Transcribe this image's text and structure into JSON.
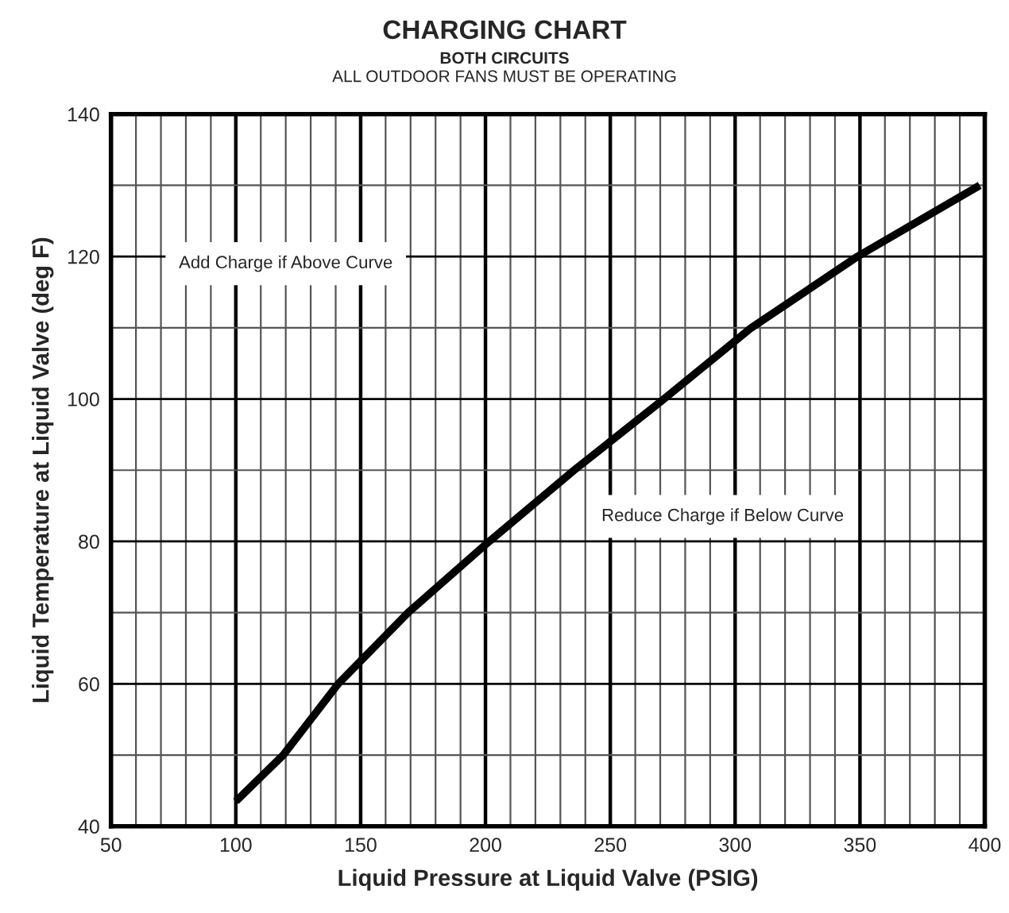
{
  "chart_data": {
    "type": "line",
    "title": "CHARGING CHART",
    "subtitle": "BOTH CIRCUITS\nALL OUTDOOR FANS MUST BE OPERATING",
    "xlabel": "Liquid Pressure at Liquid Valve (PSIG)",
    "ylabel": "Liquid Temperature at Liquid Valve (deg F)",
    "x": [
      100,
      119,
      141,
      169,
      201.5,
      235.5,
      271.5,
      306.5,
      349,
      398
    ],
    "series": [
      {
        "color": "#000000",
        "values": [
          43.5,
          50,
          60,
          70,
          80,
          90,
          100,
          110,
          120,
          130
        ]
      }
    ],
    "xlim": [
      50,
      400
    ],
    "ylim": [
      40,
      140
    ],
    "xticks": [
      50,
      {
        "value": 60,
        "label": null
      },
      {
        "value": 70,
        "label": null
      },
      {
        "value": 80,
        "label": null
      },
      {
        "value": 90,
        "label": null
      },
      100,
      {
        "value": 110,
        "label": null
      },
      {
        "value": 120,
        "label": null
      },
      {
        "value": 130,
        "label": null
      },
      {
        "value": 140,
        "label": null
      },
      150,
      {
        "value": 160,
        "label": null
      },
      {
        "value": 170,
        "label": null
      },
      {
        "value": 180,
        "label": null
      },
      {
        "value": 190,
        "label": null
      },
      200,
      {
        "value": 210,
        "label": null
      },
      {
        "value": 220,
        "label": null
      },
      {
        "value": 230,
        "label": null
      },
      {
        "value": 240,
        "label": null
      },
      250,
      {
        "value": 260,
        "label": null
      },
      {
        "value": 270,
        "label": null
      },
      {
        "value": 280,
        "label": null
      },
      {
        "value": 290,
        "label": null
      },
      300,
      {
        "value": 310,
        "label": null
      },
      {
        "value": 320,
        "label": null
      },
      {
        "value": 330,
        "label": null
      },
      {
        "value": 340,
        "label": null
      },
      350,
      {
        "value": 360,
        "label": null
      },
      {
        "value": 370,
        "label": null
      },
      {
        "value": 380,
        "label": null
      },
      {
        "value": 390,
        "label": null
      },
      400
    ],
    "yticks": [
      40,
      {
        "value": 50,
        "label": null
      },
      60,
      {
        "value": 70,
        "label": null
      },
      80,
      {
        "value": 90,
        "label": null
      },
      100,
      {
        "value": 110,
        "label": null
      },
      120,
      {
        "value": 130,
        "label": null
      },
      140
    ],
    "grid": true,
    "line_style": "solid",
    "marker": "none",
    "annotations": [
      "Add Charge if Above Curve",
      "Reduce Charge if Below Curve"
    ]
  }
}
